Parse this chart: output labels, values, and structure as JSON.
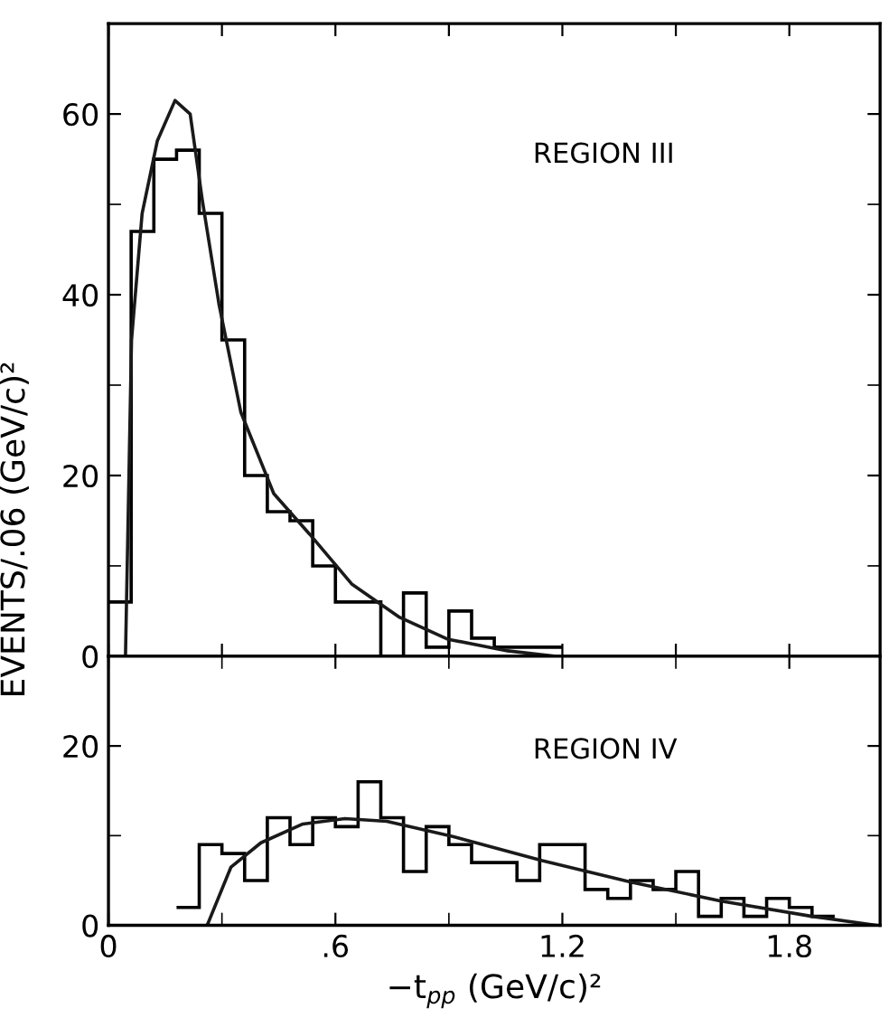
{
  "chart_data": [
    {
      "type": "histogram",
      "ylabel": "EVENTS/.06 (GeV/c)²",
      "color": "#000000",
      "bins": [
        0,
        0.06,
        0.12,
        0.18,
        0.24,
        0.3,
        0.36,
        0.42,
        0.48,
        0.54,
        0.6,
        0.66,
        0.72,
        0.78,
        0.84,
        0.9,
        0.96,
        1.02,
        1.08,
        1.14,
        1.2
      ],
      "values": [
        6,
        47,
        55,
        56,
        49,
        35,
        20,
        16,
        15,
        10,
        6,
        6,
        0,
        7,
        1,
        5,
        2,
        1,
        1,
        1
      ],
      "series": [
        {
          "type": "line",
          "color": "#1a1a1a",
          "x": [
            0.045,
            0.061,
            0.089,
            0.129,
            0.176,
            0.216,
            0.248,
            0.292,
            0.35,
            0.437,
            0.532,
            0.643,
            0.77,
            0.896,
            1.055,
            1.18
          ],
          "values": [
            0,
            35,
            49,
            57,
            61.5,
            60,
            50.5,
            39,
            27,
            18,
            13.5,
            8,
            4.3,
            1.9,
            0.6,
            0
          ]
        }
      ],
      "xlim": [
        0,
        2.04
      ],
      "xticks": [
        0,
        0.3,
        0.6,
        0.9,
        1.2,
        1.5,
        1.8
      ],
      "ylim": [
        0,
        70
      ],
      "yticks": [
        0,
        {
          "value": 10,
          "label": null
        },
        20,
        {
          "value": 30,
          "label": null
        },
        40,
        {
          "value": 50,
          "label": null
        },
        60
      ],
      "tick_labels": "y",
      "annotations": [
        {
          "text": "REGION III"
        }
      ]
    },
    {
      "type": "histogram",
      "xlabel": "−t$_{pp}$ (GeV/c)²",
      "color": "#000000",
      "bins": [
        0.18,
        0.24,
        0.3,
        0.36,
        0.42,
        0.48,
        0.54,
        0.6,
        0.66,
        0.72,
        0.78,
        0.84,
        0.9,
        0.96,
        1.02,
        1.08,
        1.14,
        1.2,
        1.26,
        1.32,
        1.38,
        1.44,
        1.5,
        1.56,
        1.62,
        1.68,
        1.74,
        1.8,
        1.86,
        1.92
      ],
      "values": [
        2,
        9,
        8,
        5,
        12,
        9,
        12,
        11,
        16,
        12,
        6,
        11,
        9,
        7,
        7,
        5,
        9,
        9,
        4,
        3,
        5,
        4,
        6,
        1,
        3,
        1,
        3,
        2,
        1
      ],
      "series": [
        {
          "type": "line",
          "color": "#1a1a1a",
          "x": [
            0.261,
            0.324,
            0.403,
            0.514,
            0.625,
            0.736,
            0.91,
            1.147,
            1.384,
            1.62,
            1.86,
            2.03
          ],
          "values": [
            0,
            6.5,
            9.2,
            11.3,
            11.9,
            11.6,
            9.9,
            7.2,
            4.8,
            2.7,
            1.0,
            0
          ]
        }
      ],
      "xlim": [
        0,
        2.04
      ],
      "xticks": [
        0,
        {
          "value": 0.3,
          "label": null
        },
        {
          "value": 0.6,
          "label": ".6"
        },
        {
          "value": 0.9,
          "label": null
        },
        {
          "value": 1.2,
          "label": "1.2"
        },
        {
          "value": 1.5,
          "label": null
        },
        {
          "value": 1.8,
          "label": "1.8"
        }
      ],
      "ylim": [
        0,
        30
      ],
      "yticks": [
        0,
        {
          "value": 10,
          "label": null
        },
        20
      ],
      "annotations": [
        {
          "text": "REGION IV"
        }
      ]
    }
  ]
}
